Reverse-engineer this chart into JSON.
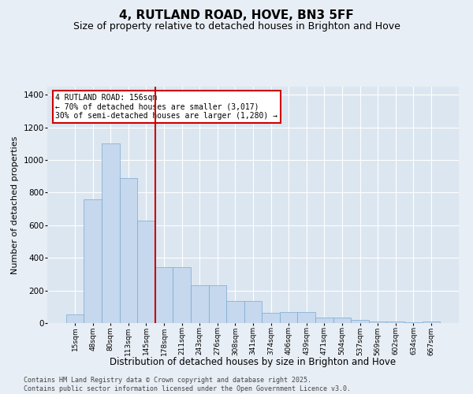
{
  "title": "4, RUTLAND ROAD, HOVE, BN3 5FF",
  "subtitle": "Size of property relative to detached houses in Brighton and Hove",
  "xlabel": "Distribution of detached houses by size in Brighton and Hove",
  "ylabel": "Number of detached properties",
  "categories": [
    "15sqm",
    "48sqm",
    "80sqm",
    "113sqm",
    "145sqm",
    "178sqm",
    "211sqm",
    "243sqm",
    "276sqm",
    "308sqm",
    "341sqm",
    "374sqm",
    "406sqm",
    "439sqm",
    "471sqm",
    "504sqm",
    "537sqm",
    "569sqm",
    "602sqm",
    "634sqm",
    "667sqm"
  ],
  "values": [
    55,
    760,
    1100,
    890,
    630,
    345,
    345,
    230,
    230,
    135,
    135,
    65,
    70,
    70,
    35,
    35,
    18,
    12,
    8,
    3,
    8
  ],
  "bar_color": "#c5d8ed",
  "bar_edge_color": "#7aaad0",
  "vline_color": "#cc0000",
  "annotation_text": "4 RUTLAND ROAD: 156sqm\n← 70% of detached houses are smaller (3,017)\n30% of semi-detached houses are larger (1,280) →",
  "annotation_box_color": "#cc0000",
  "ylim": [
    0,
    1450
  ],
  "yticks": [
    0,
    200,
    400,
    600,
    800,
    1000,
    1200,
    1400
  ],
  "footer_text": "Contains HM Land Registry data © Crown copyright and database right 2025.\nContains public sector information licensed under the Open Government Licence v3.0.",
  "bg_color": "#e8eef5",
  "plot_bg_color": "#dce6f0",
  "grid_color": "#ffffff",
  "title_fontsize": 11,
  "subtitle_fontsize": 9,
  "tick_fontsize": 6.5,
  "ylabel_fontsize": 8,
  "xlabel_fontsize": 8.5,
  "footer_fontsize": 6
}
